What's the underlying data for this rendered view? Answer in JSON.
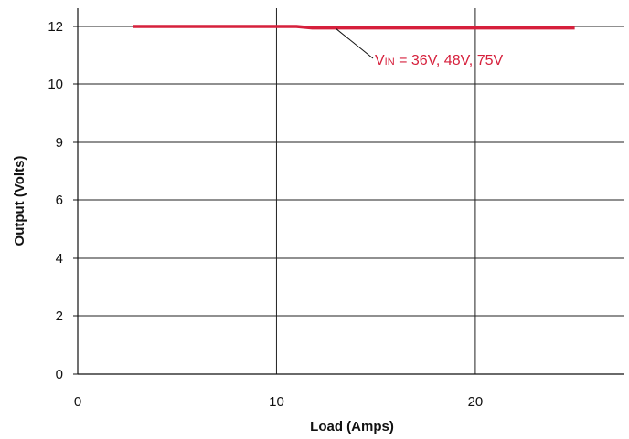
{
  "chart_data": {
    "type": "line",
    "xlabel": "Load (Amps)",
    "ylabel": "Output (Volts)",
    "x_ticks": [
      0,
      10,
      20
    ],
    "y_ticks": [
      "0",
      "2",
      "4",
      "6",
      "9",
      "10",
      "12"
    ],
    "xlim": [
      0,
      27.5
    ],
    "grid": true,
    "series": [
      {
        "x": [
          2.8,
          11.0,
          11.8,
          25.0
        ],
        "y": [
          12.0,
          12.0,
          11.95,
          11.95
        ],
        "color": "#d6203c"
      }
    ],
    "annotation": {
      "prefix": "V",
      "subscript": "IN",
      "text": " = 36V, 48V, 75V",
      "color": "#d6203c",
      "points_to_x": 13.0
    }
  }
}
